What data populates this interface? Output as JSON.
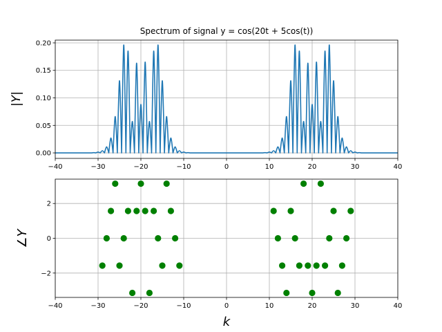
{
  "chart_data": [
    {
      "type": "line",
      "title": "Spectrum of signal y = cos(20t + 5cos(t))",
      "xlabel": "",
      "ylabel": "|Y|",
      "xlim": [
        -40,
        40
      ],
      "ylim": [
        -0.01,
        0.205
      ],
      "grid": true,
      "xticks": [
        "-40",
        "-30",
        "-20",
        "-10",
        "0",
        "10",
        "20",
        "30",
        "40"
      ],
      "yticks": [
        "0.00",
        "0.05",
        "0.10",
        "0.15",
        "0.20"
      ],
      "color": "#1f77b4",
      "series": [
        {
          "x": [
            -40,
            -31,
            -30,
            -29,
            -28,
            -27,
            -26,
            -25,
            -24,
            -23,
            -22,
            -21,
            -20,
            -19,
            -18,
            -17,
            -16,
            -15,
            -14,
            -13,
            -12,
            -11,
            -10,
            -9,
            0,
            9,
            10,
            11,
            12,
            13,
            14,
            15,
            16,
            17,
            18,
            19,
            20,
            21,
            22,
            23,
            24,
            25,
            26,
            27,
            28,
            29,
            30,
            31,
            40
          ],
          "y": [
            0,
            0.0005,
            0.0015,
            0.004,
            0.011,
            0.027,
            0.066,
            0.131,
            0.196,
            0.185,
            0.057,
            0.163,
            0.088,
            0.165,
            0.057,
            0.185,
            0.196,
            0.131,
            0.066,
            0.027,
            0.011,
            0.004,
            0.0015,
            0.0005,
            0,
            0.0005,
            0.0015,
            0.004,
            0.011,
            0.027,
            0.066,
            0.131,
            0.196,
            0.185,
            0.057,
            0.163,
            0.088,
            0.165,
            0.057,
            0.185,
            0.196,
            0.131,
            0.066,
            0.027,
            0.011,
            0.004,
            0.0015,
            0.0005,
            0
          ]
        }
      ]
    },
    {
      "type": "scatter",
      "title": "",
      "xlabel": "k",
      "ylabel": "∠Y",
      "xlim": [
        -40,
        40
      ],
      "ylim": [
        -3.4,
        3.4
      ],
      "grid": true,
      "xticks": [
        "-40",
        "-30",
        "-20",
        "-10",
        "0",
        "10",
        "20",
        "30",
        "40"
      ],
      "yticks": [
        "-2",
        "0",
        "2"
      ],
      "color": "green",
      "series": [
        {
          "x": [
            -29,
            -28,
            -27,
            -26,
            -25,
            -24,
            -23,
            -22,
            -21,
            -20,
            -19,
            -18,
            -17,
            -16,
            -15,
            -14,
            -13,
            -12,
            -11,
            11,
            12,
            13,
            14,
            15,
            16,
            17,
            18,
            19,
            20,
            21,
            22,
            23,
            24,
            25,
            26,
            27,
            28,
            29
          ],
          "y": [
            -1.57,
            0,
            1.57,
            3.14,
            -1.57,
            0,
            1.57,
            -3.14,
            1.57,
            3.14,
            1.57,
            -3.14,
            1.57,
            0,
            -1.57,
            3.14,
            1.57,
            0,
            -1.57,
            1.57,
            0,
            -1.57,
            -3.14,
            1.57,
            0,
            -1.57,
            3.14,
            -1.57,
            -3.14,
            -1.57,
            3.14,
            -1.57,
            0,
            1.57,
            -3.14,
            -1.57,
            0,
            1.57
          ]
        }
      ]
    }
  ]
}
